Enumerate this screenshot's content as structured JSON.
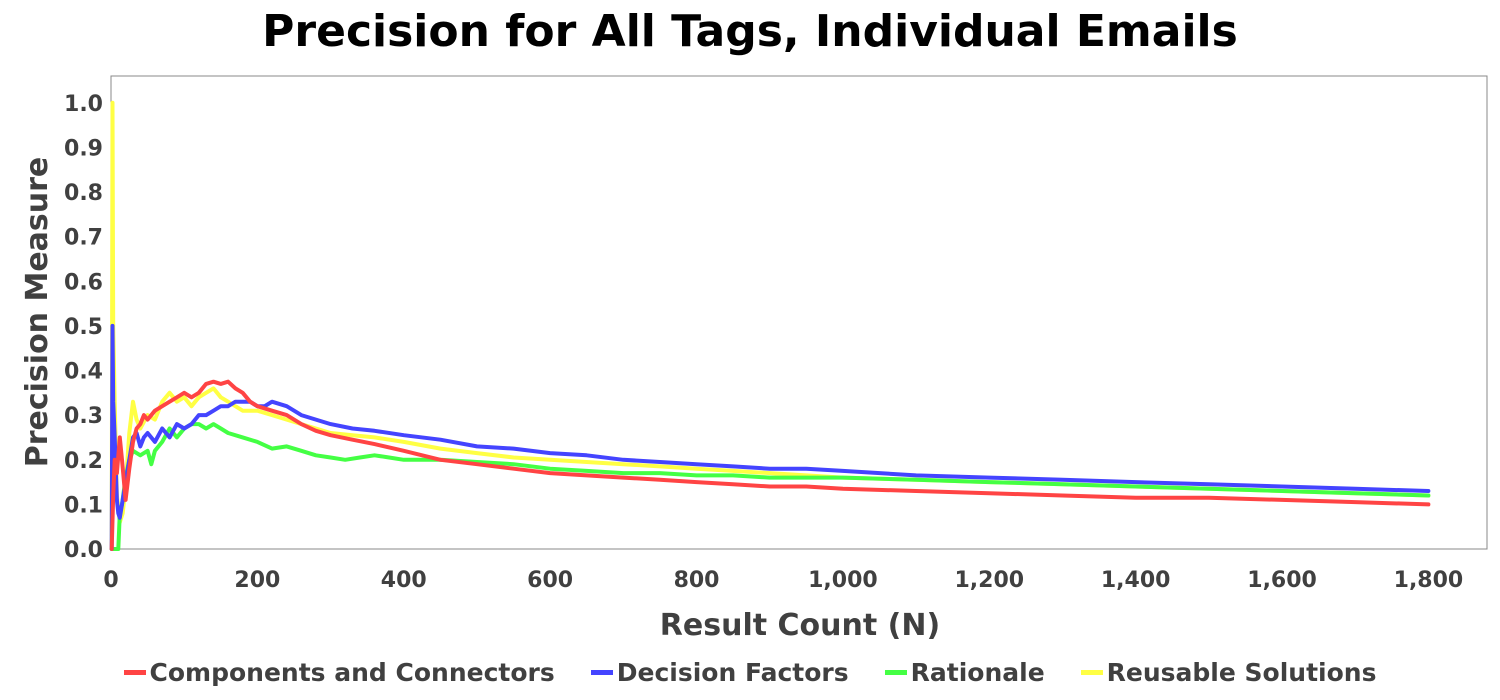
{
  "chart_data": {
    "type": "line",
    "title": "Precision for All Tags, Individual Emails",
    "xlabel": "Result Count (N)",
    "ylabel": "Precision Measure",
    "xlim": [
      0,
      1880
    ],
    "ylim": [
      0,
      1.06
    ],
    "xticks": [
      0,
      200,
      400,
      600,
      800,
      1000,
      1200,
      1400,
      1600,
      1800
    ],
    "xtick_labels": [
      "0",
      "200",
      "400",
      "600",
      "800",
      "1,000",
      "1,200",
      "1,400",
      "1,600",
      "1,800"
    ],
    "yticks": [
      0,
      0.1,
      0.2,
      0.3,
      0.4,
      0.5,
      0.6,
      0.7,
      0.8,
      0.9,
      1.0
    ],
    "ytick_labels": [
      "0.0",
      "0.1",
      "0.2",
      "0.3",
      "0.4",
      "0.5",
      "0.6",
      "0.7",
      "0.8",
      "0.9",
      "1.0"
    ],
    "grid": false,
    "legend_position": "bottom",
    "series": [
      {
        "name": "Reusable Solutions",
        "color": "#ffff44",
        "x": [
          1,
          2,
          3,
          5,
          8,
          12,
          16,
          20,
          25,
          30,
          35,
          40,
          50,
          60,
          70,
          80,
          90,
          100,
          110,
          120,
          130,
          140,
          150,
          160,
          170,
          180,
          200,
          220,
          240,
          260,
          280,
          300,
          330,
          360,
          400,
          450,
          500,
          550,
          600,
          650,
          700,
          750,
          800,
          850,
          900,
          950,
          1000,
          1100,
          1200,
          1300,
          1400,
          1500,
          1600,
          1700,
          1800
        ],
        "y": [
          0.0,
          1.0,
          0.5,
          0.33,
          0.12,
          0.06,
          0.08,
          0.14,
          0.26,
          0.33,
          0.29,
          0.27,
          0.3,
          0.29,
          0.33,
          0.35,
          0.33,
          0.34,
          0.32,
          0.34,
          0.35,
          0.36,
          0.34,
          0.33,
          0.32,
          0.31,
          0.31,
          0.3,
          0.29,
          0.28,
          0.27,
          0.26,
          0.255,
          0.25,
          0.24,
          0.225,
          0.215,
          0.205,
          0.2,
          0.195,
          0.19,
          0.185,
          0.18,
          0.175,
          0.17,
          0.165,
          0.16,
          0.155,
          0.15,
          0.145,
          0.14,
          0.135,
          0.13,
          0.125,
          0.12
        ]
      },
      {
        "name": "Rationale",
        "color": "#44ff44",
        "x": [
          1,
          5,
          10,
          12,
          15,
          20,
          25,
          30,
          40,
          50,
          55,
          60,
          70,
          80,
          90,
          100,
          110,
          120,
          130,
          140,
          150,
          160,
          180,
          200,
          220,
          240,
          260,
          280,
          300,
          320,
          340,
          360,
          380,
          400,
          450,
          500,
          550,
          600,
          650,
          700,
          750,
          800,
          850,
          900,
          950,
          1000,
          1100,
          1200,
          1300,
          1400,
          1500,
          1600,
          1700,
          1800
        ],
        "y": [
          0.0,
          0.0,
          0.0,
          0.08,
          0.1,
          0.16,
          0.2,
          0.22,
          0.21,
          0.22,
          0.19,
          0.22,
          0.24,
          0.27,
          0.25,
          0.27,
          0.28,
          0.28,
          0.27,
          0.28,
          0.27,
          0.26,
          0.25,
          0.24,
          0.225,
          0.23,
          0.22,
          0.21,
          0.205,
          0.2,
          0.205,
          0.21,
          0.205,
          0.2,
          0.2,
          0.195,
          0.19,
          0.18,
          0.175,
          0.17,
          0.17,
          0.165,
          0.165,
          0.16,
          0.16,
          0.16,
          0.155,
          0.15,
          0.145,
          0.14,
          0.135,
          0.13,
          0.125,
          0.12
        ]
      },
      {
        "name": "Decision Factors",
        "color": "#4444ff",
        "x": [
          1,
          2,
          3,
          5,
          8,
          10,
          12,
          15,
          20,
          25,
          30,
          35,
          40,
          45,
          50,
          60,
          70,
          80,
          90,
          100,
          110,
          120,
          130,
          140,
          150,
          160,
          170,
          180,
          190,
          200,
          210,
          220,
          240,
          260,
          280,
          300,
          330,
          360,
          400,
          450,
          500,
          550,
          600,
          650,
          700,
          750,
          800,
          850,
          900,
          950,
          1000,
          1100,
          1200,
          1300,
          1400,
          1500,
          1600,
          1700,
          1800
        ],
        "y": [
          0.0,
          0.5,
          0.33,
          0.25,
          0.11,
          0.08,
          0.07,
          0.1,
          0.15,
          0.2,
          0.25,
          0.26,
          0.23,
          0.25,
          0.26,
          0.24,
          0.27,
          0.25,
          0.28,
          0.27,
          0.28,
          0.3,
          0.3,
          0.31,
          0.32,
          0.32,
          0.33,
          0.33,
          0.33,
          0.32,
          0.32,
          0.33,
          0.32,
          0.3,
          0.29,
          0.28,
          0.27,
          0.265,
          0.255,
          0.245,
          0.23,
          0.225,
          0.215,
          0.21,
          0.2,
          0.195,
          0.19,
          0.185,
          0.18,
          0.18,
          0.175,
          0.165,
          0.16,
          0.155,
          0.15,
          0.145,
          0.14,
          0.135,
          0.13
        ]
      },
      {
        "name": "Components and Connectors",
        "color": "#ff4444",
        "x": [
          1,
          3,
          5,
          8,
          12,
          15,
          20,
          25,
          30,
          35,
          40,
          45,
          50,
          60,
          70,
          80,
          90,
          100,
          110,
          120,
          130,
          140,
          150,
          160,
          170,
          180,
          190,
          200,
          220,
          240,
          260,
          280,
          300,
          330,
          360,
          400,
          450,
          500,
          550,
          600,
          650,
          700,
          750,
          800,
          850,
          900,
          950,
          1000,
          1100,
          1200,
          1300,
          1400,
          1500,
          1600,
          1700,
          1800
        ],
        "y": [
          0.0,
          0.12,
          0.2,
          0.17,
          0.25,
          0.2,
          0.11,
          0.18,
          0.24,
          0.27,
          0.28,
          0.3,
          0.29,
          0.31,
          0.32,
          0.33,
          0.34,
          0.35,
          0.34,
          0.35,
          0.37,
          0.375,
          0.37,
          0.375,
          0.36,
          0.35,
          0.33,
          0.32,
          0.31,
          0.3,
          0.28,
          0.265,
          0.255,
          0.245,
          0.235,
          0.22,
          0.2,
          0.19,
          0.18,
          0.17,
          0.165,
          0.16,
          0.155,
          0.15,
          0.145,
          0.14,
          0.14,
          0.135,
          0.13,
          0.125,
          0.12,
          0.115,
          0.115,
          0.11,
          0.105,
          0.1
        ]
      }
    ]
  },
  "legend": [
    {
      "label": "Components and Connectors",
      "color": "#ff4444"
    },
    {
      "label": "Decision Factors",
      "color": "#4444ff"
    },
    {
      "label": "Rationale",
      "color": "#44ff44"
    },
    {
      "label": "Reusable Solutions",
      "color": "#ffff44"
    }
  ]
}
